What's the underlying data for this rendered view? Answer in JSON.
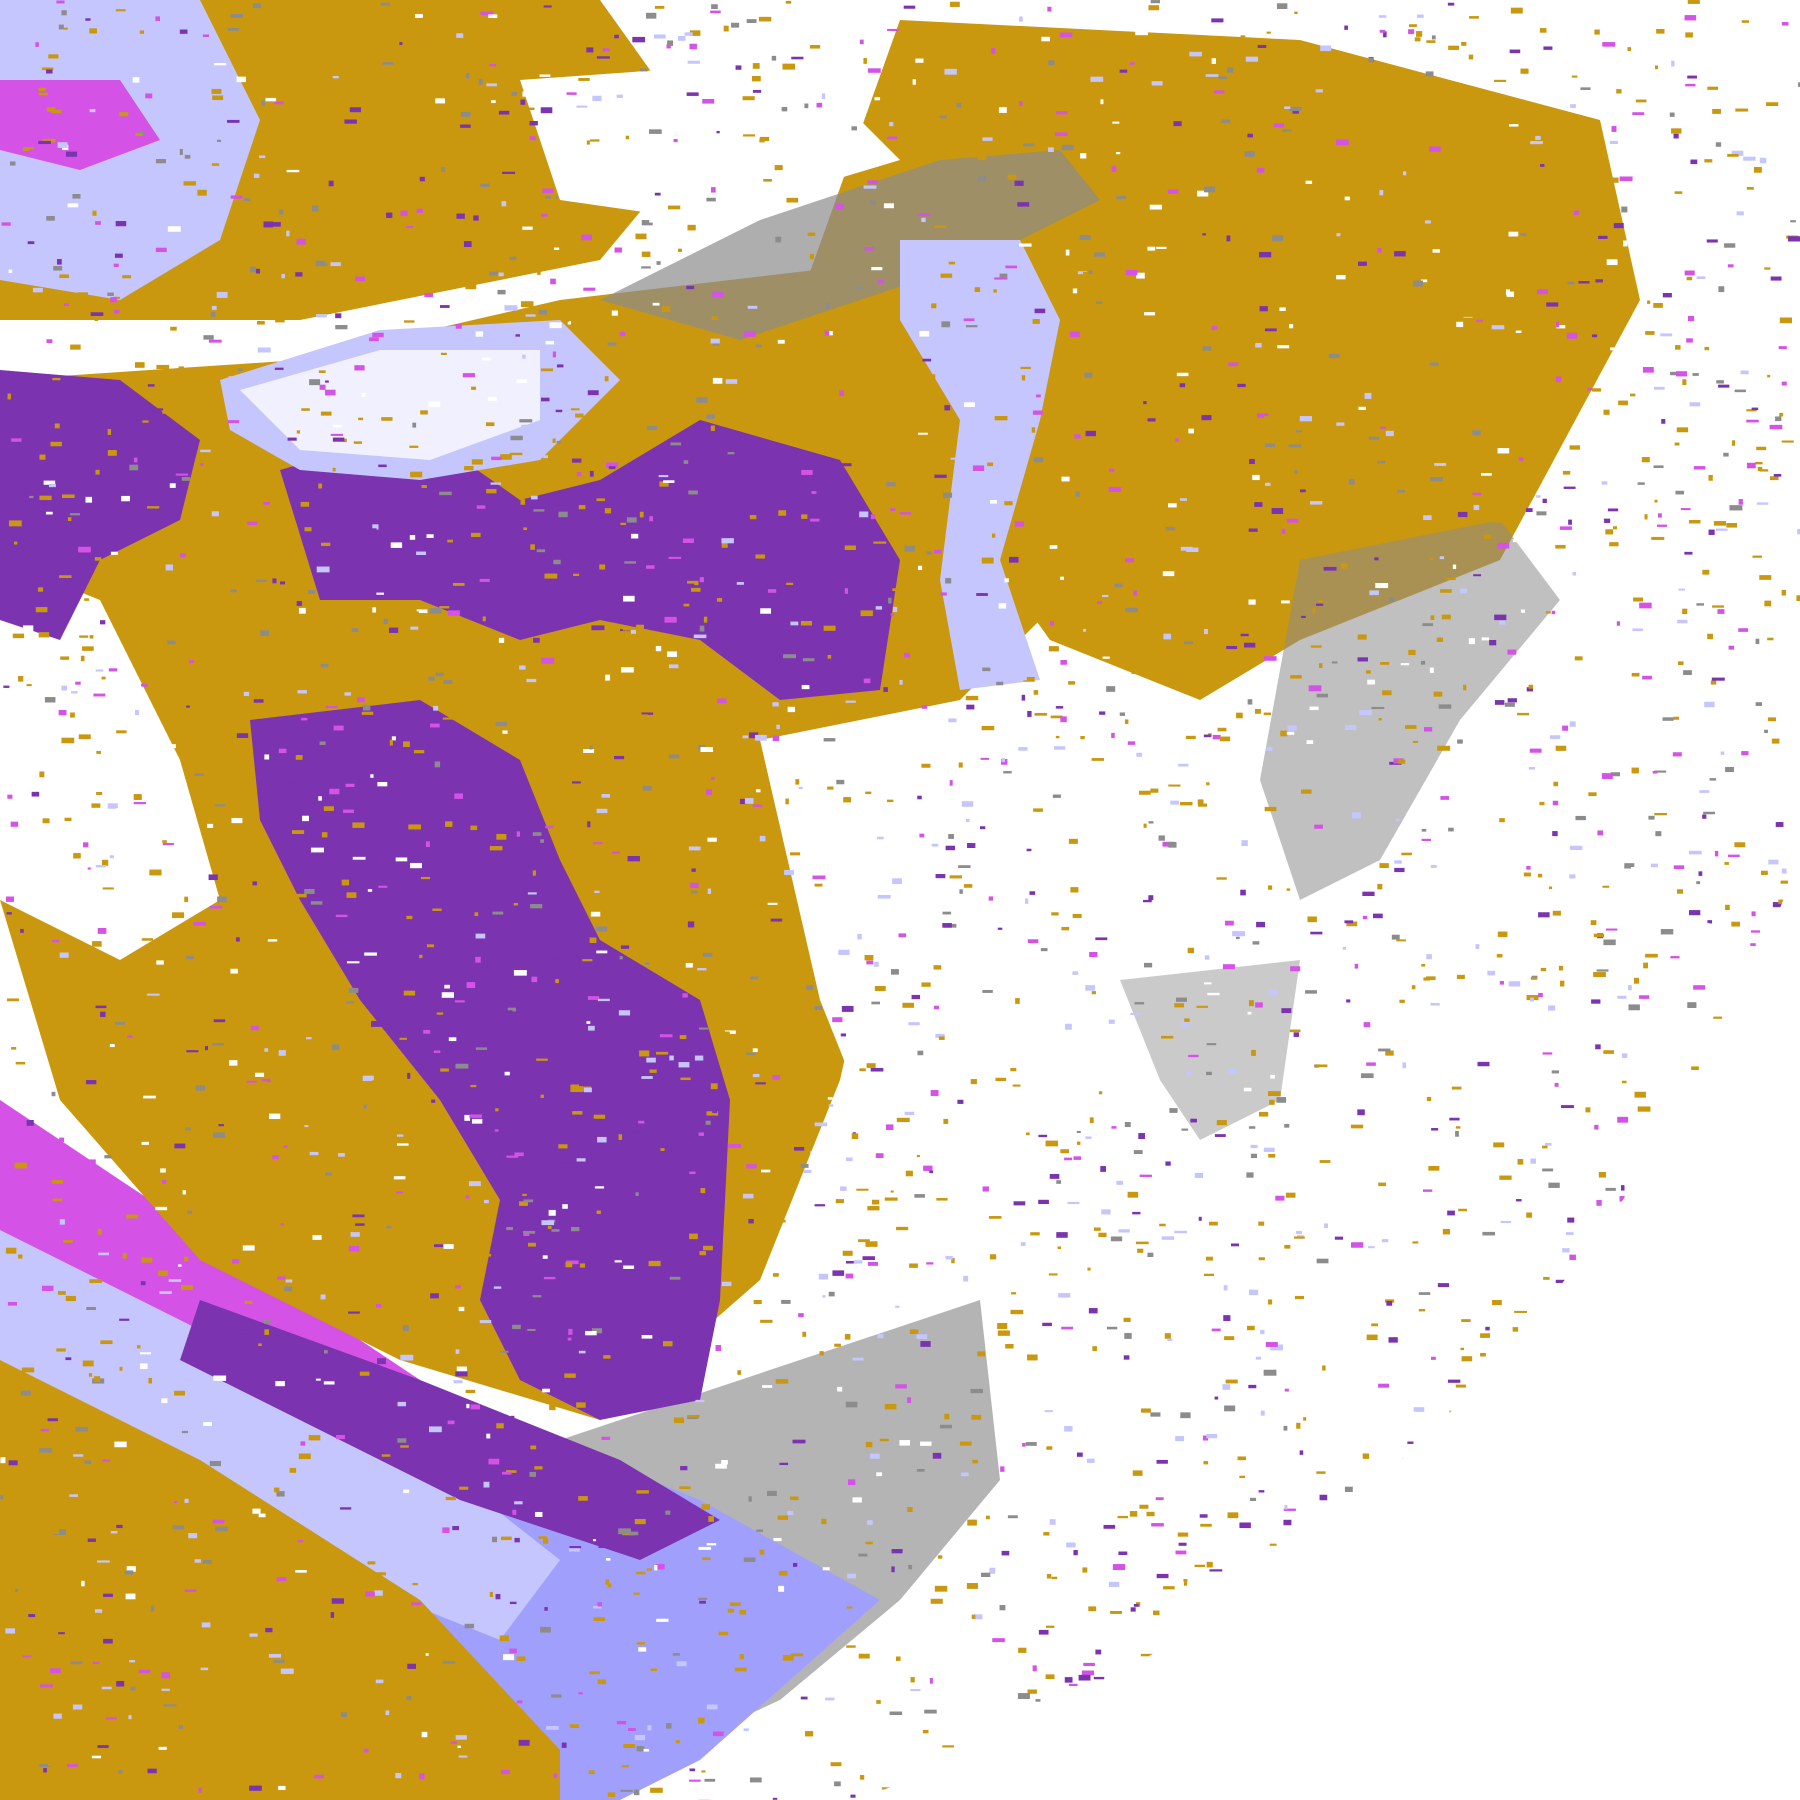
{
  "map": {
    "type": "satellite cloud-type classification",
    "legend_shown": false,
    "palette": {
      "background": "#ffffff",
      "low_cloud": "#c9980f",
      "thick_cloud": "#7b33b0",
      "overshoot": "#d452e6",
      "cirrus_light": "#c6c6ff",
      "cirrus_bright": "#f0f0ff",
      "periwinkle": "#a0a0fc",
      "gray_dark": "#8c8c8c",
      "gray_light": "#b4b4b4"
    }
  }
}
